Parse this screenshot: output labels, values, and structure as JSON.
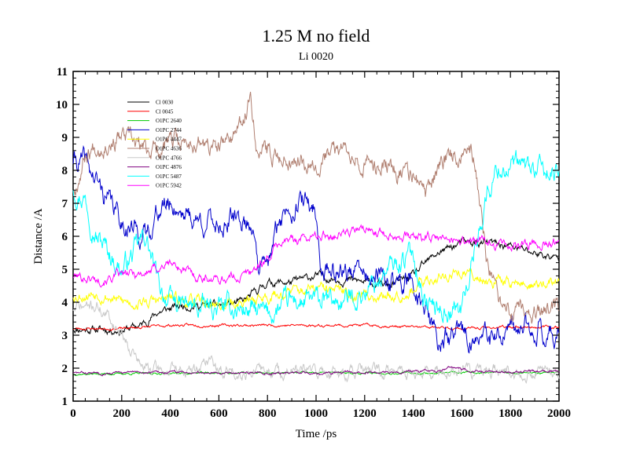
{
  "chart_data": {
    "type": "line",
    "title": "1.25 M no field",
    "subtitle": "Li 0020",
    "xlabel": "Time /ps",
    "ylabel": "Distance /A",
    "xlim": [
      0,
      2000
    ],
    "ylim": [
      1,
      11
    ],
    "xticks": [
      0,
      200,
      400,
      600,
      800,
      1000,
      1200,
      1400,
      1600,
      1800,
      2000
    ],
    "yticks": [
      1,
      2,
      3,
      4,
      5,
      6,
      7,
      8,
      9,
      10,
      11
    ],
    "grid": false,
    "legend_position": "top-left",
    "series": [
      {
        "name": "Cl 0030",
        "color": "#000000",
        "noise": 0.12,
        "seed": 11,
        "points": [
          [
            0,
            3.2
          ],
          [
            200,
            3.15
          ],
          [
            280,
            3.3
          ],
          [
            350,
            3.7
          ],
          [
            450,
            3.9
          ],
          [
            600,
            3.9
          ],
          [
            700,
            4.0
          ],
          [
            800,
            4.6
          ],
          [
            900,
            4.6
          ],
          [
            1000,
            4.8
          ],
          [
            1100,
            4.7
          ],
          [
            1200,
            4.6
          ],
          [
            1300,
            4.5
          ],
          [
            1400,
            4.8
          ],
          [
            1500,
            5.5
          ],
          [
            1600,
            5.8
          ],
          [
            1700,
            5.8
          ],
          [
            1800,
            5.7
          ],
          [
            1900,
            5.5
          ],
          [
            2000,
            5.3
          ]
        ]
      },
      {
        "name": "Cl 0045",
        "color": "#ff0000",
        "noise": 0.04,
        "seed": 23,
        "points": [
          [
            0,
            3.2
          ],
          [
            200,
            3.2
          ],
          [
            300,
            3.25
          ],
          [
            400,
            3.3
          ],
          [
            600,
            3.3
          ],
          [
            800,
            3.3
          ],
          [
            1000,
            3.3
          ],
          [
            1200,
            3.3
          ],
          [
            1400,
            3.25
          ],
          [
            1600,
            3.2
          ],
          [
            1800,
            3.25
          ],
          [
            2000,
            3.25
          ]
        ]
      },
      {
        "name": "O1PC 2640",
        "color": "#00cc00",
        "noise": 0.03,
        "seed": 37,
        "points": [
          [
            0,
            1.82
          ],
          [
            500,
            1.85
          ],
          [
            1000,
            1.86
          ],
          [
            1500,
            1.85
          ],
          [
            2000,
            1.87
          ]
        ]
      },
      {
        "name": "O1PC 2744",
        "color": "#0000cc",
        "noise": 0.35,
        "seed": 41,
        "points": [
          [
            0,
            8.3
          ],
          [
            50,
            8.2
          ],
          [
            100,
            7.6
          ],
          [
            150,
            7.0
          ],
          [
            200,
            6.5
          ],
          [
            250,
            6.2
          ],
          [
            300,
            6.0
          ],
          [
            350,
            6.8
          ],
          [
            400,
            7.0
          ],
          [
            450,
            6.8
          ],
          [
            500,
            6.5
          ],
          [
            600,
            6.4
          ],
          [
            700,
            6.5
          ],
          [
            750,
            6.3
          ],
          [
            760,
            5.0
          ],
          [
            800,
            5.0
          ],
          [
            850,
            6.5
          ],
          [
            900,
            7.0
          ],
          [
            950,
            7.0
          ],
          [
            1000,
            6.8
          ],
          [
            1020,
            5.0
          ],
          [
            1100,
            5.0
          ],
          [
            1200,
            4.8
          ],
          [
            1300,
            4.6
          ],
          [
            1400,
            4.6
          ],
          [
            1450,
            3.8
          ],
          [
            1500,
            2.8
          ],
          [
            1600,
            3.0
          ],
          [
            1700,
            2.8
          ],
          [
            1800,
            3.0
          ],
          [
            1900,
            3.3
          ],
          [
            2000,
            3.0
          ]
        ]
      },
      {
        "name": "O1PC 4447",
        "color": "#ffff00",
        "noise": 0.18,
        "seed": 53,
        "points": [
          [
            0,
            4.2
          ],
          [
            100,
            4.3
          ],
          [
            200,
            4.0
          ],
          [
            300,
            4.0
          ],
          [
            400,
            4.1
          ],
          [
            500,
            4.0
          ],
          [
            600,
            3.9
          ],
          [
            700,
            4.0
          ],
          [
            800,
            4.2
          ],
          [
            900,
            4.3
          ],
          [
            1000,
            4.4
          ],
          [
            1100,
            4.3
          ],
          [
            1200,
            4.2
          ],
          [
            1300,
            4.2
          ],
          [
            1400,
            4.4
          ],
          [
            1500,
            4.8
          ],
          [
            1600,
            4.9
          ],
          [
            1700,
            4.7
          ],
          [
            1800,
            4.6
          ],
          [
            1900,
            4.5
          ],
          [
            2000,
            4.6
          ]
        ]
      },
      {
        "name": "O1PC 4636",
        "color": "#b07f70",
        "noise": 0.3,
        "seed": 67,
        "points": [
          [
            0,
            7.3
          ],
          [
            50,
            8.5
          ],
          [
            100,
            8.8
          ],
          [
            200,
            9.0
          ],
          [
            300,
            8.6
          ],
          [
            400,
            8.8
          ],
          [
            500,
            8.9
          ],
          [
            600,
            8.6
          ],
          [
            700,
            9.4
          ],
          [
            730,
            10.3
          ],
          [
            760,
            8.6
          ],
          [
            800,
            8.5
          ],
          [
            900,
            8.4
          ],
          [
            1000,
            8.3
          ],
          [
            1100,
            8.6
          ],
          [
            1150,
            8.7
          ],
          [
            1200,
            8.2
          ],
          [
            1300,
            8.1
          ],
          [
            1400,
            7.8
          ],
          [
            1450,
            7.2
          ],
          [
            1500,
            8.0
          ],
          [
            1550,
            8.5
          ],
          [
            1600,
            8.6
          ],
          [
            1650,
            8.4
          ],
          [
            1700,
            5.5
          ],
          [
            1750,
            3.8
          ],
          [
            1800,
            3.6
          ],
          [
            1900,
            3.6
          ],
          [
            2000,
            3.8
          ]
        ]
      },
      {
        "name": "O1PC 4766",
        "color": "#c8c8c8",
        "noise": 0.2,
        "seed": 71,
        "points": [
          [
            0,
            3.8
          ],
          [
            100,
            3.9
          ],
          [
            150,
            3.5
          ],
          [
            200,
            3.1
          ],
          [
            250,
            2.5
          ],
          [
            280,
            2.0
          ],
          [
            300,
            2.0
          ],
          [
            400,
            1.9
          ],
          [
            500,
            1.9
          ],
          [
            560,
            2.3
          ],
          [
            600,
            1.9
          ],
          [
            700,
            1.9
          ],
          [
            1000,
            1.88
          ],
          [
            1500,
            1.88
          ],
          [
            2000,
            1.88
          ]
        ]
      },
      {
        "name": "O1PC 4876",
        "color": "#800080",
        "noise": 0.04,
        "seed": 83,
        "points": [
          [
            0,
            1.85
          ],
          [
            500,
            1.88
          ],
          [
            1000,
            1.85
          ],
          [
            1500,
            1.9
          ],
          [
            1550,
            2.05
          ],
          [
            1600,
            1.95
          ],
          [
            1700,
            1.9
          ],
          [
            1800,
            1.88
          ],
          [
            2000,
            1.9
          ]
        ]
      },
      {
        "name": "O1PC 5487",
        "color": "#00ffff",
        "noise": 0.35,
        "seed": 97,
        "points": [
          [
            0,
            7.5
          ],
          [
            50,
            7.2
          ],
          [
            100,
            6.0
          ],
          [
            150,
            5.5
          ],
          [
            200,
            5.0
          ],
          [
            250,
            5.5
          ],
          [
            300,
            6.0
          ],
          [
            350,
            4.5
          ],
          [
            400,
            4.0
          ],
          [
            500,
            3.8
          ],
          [
            600,
            3.8
          ],
          [
            700,
            3.8
          ],
          [
            800,
            3.6
          ],
          [
            900,
            4.0
          ],
          [
            1000,
            4.0
          ],
          [
            1100,
            4.0
          ],
          [
            1200,
            4.3
          ],
          [
            1300,
            5.0
          ],
          [
            1400,
            5.5
          ],
          [
            1450,
            4.0
          ],
          [
            1500,
            3.8
          ],
          [
            1600,
            3.8
          ],
          [
            1650,
            5.5
          ],
          [
            1700,
            7.2
          ],
          [
            1750,
            8.1
          ],
          [
            1800,
            8.1
          ],
          [
            1900,
            8.0
          ],
          [
            2000,
            7.8
          ]
        ]
      },
      {
        "name": "O1PC 5942",
        "color": "#ff00ff",
        "noise": 0.15,
        "seed": 101,
        "points": [
          [
            0,
            4.8
          ],
          [
            100,
            4.7
          ],
          [
            200,
            4.8
          ],
          [
            300,
            4.9
          ],
          [
            400,
            5.2
          ],
          [
            500,
            4.8
          ],
          [
            600,
            4.7
          ],
          [
            700,
            4.8
          ],
          [
            800,
            5.3
          ],
          [
            850,
            5.8
          ],
          [
            900,
            5.9
          ],
          [
            1000,
            6.0
          ],
          [
            1100,
            6.1
          ],
          [
            1200,
            6.2
          ],
          [
            1300,
            6.1
          ],
          [
            1400,
            6.0
          ],
          [
            1500,
            5.9
          ],
          [
            1600,
            5.9
          ],
          [
            1700,
            5.8
          ],
          [
            1800,
            5.7
          ],
          [
            1900,
            5.8
          ],
          [
            2000,
            5.8
          ]
        ]
      }
    ]
  }
}
